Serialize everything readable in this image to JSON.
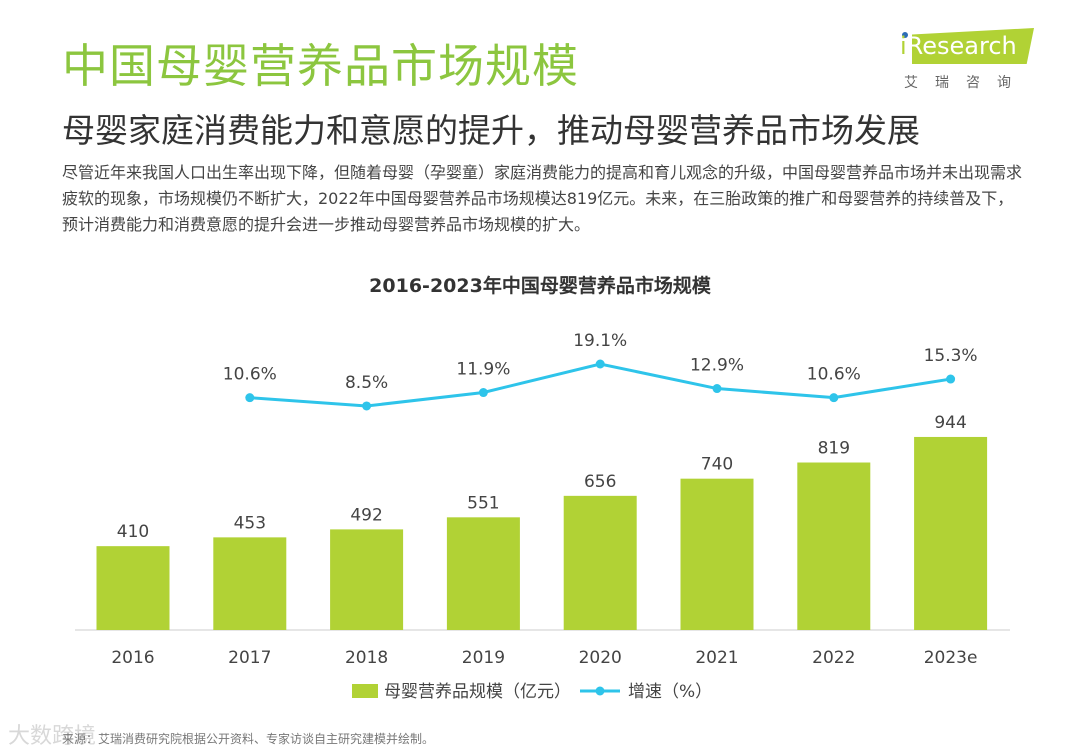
{
  "header": {
    "title": "中国母婴营养品市场规模",
    "subtitle": "母婴家庭消费能力和意愿的提升，推动母婴营养品市场发展",
    "body": "尽管近年来我国人口出生率出现下降，但随着母婴（孕婴童）家庭消费能力的提高和育儿观念的升级，中国母婴营养品市场并未出现需求疲软的现象，市场规模仍不断扩大，2022年中国母婴营养品市场规模达819亿元。未来，在三胎政策的推广和母婴营养的持续普及下，预计消费能力和消费意愿的提升会进一步推动母婴营养品市场规模的扩大。"
  },
  "logo": {
    "text": "iResearch",
    "cn": "艾瑞咨询"
  },
  "footer": {
    "source": "来源：艾瑞消费研究院根据公开资料、专家访谈自主研究建模并绘制。",
    "watermark": "大数跨境"
  },
  "chart_data": {
    "type": "bar+line",
    "title": "2016-2023年中国母婴营养品市场规模",
    "categories": [
      "2016",
      "2017",
      "2018",
      "2019",
      "2020",
      "2021",
      "2022",
      "2023e"
    ],
    "series": [
      {
        "name": "母婴营养品规模（亿元）",
        "type": "bar",
        "values": [
          410,
          453,
          492,
          551,
          656,
          740,
          819,
          944
        ],
        "color": "#b1d235"
      },
      {
        "name": "增速（%）",
        "type": "line",
        "values": [
          null,
          10.6,
          8.5,
          11.9,
          19.1,
          12.9,
          10.6,
          15.3
        ],
        "labels": [
          "",
          "10.6%",
          "8.5%",
          "11.9%",
          "19.1%",
          "12.9%",
          "10.6%",
          "15.3%"
        ],
        "color": "#2ec4ea"
      }
    ],
    "legend": "bottom"
  }
}
